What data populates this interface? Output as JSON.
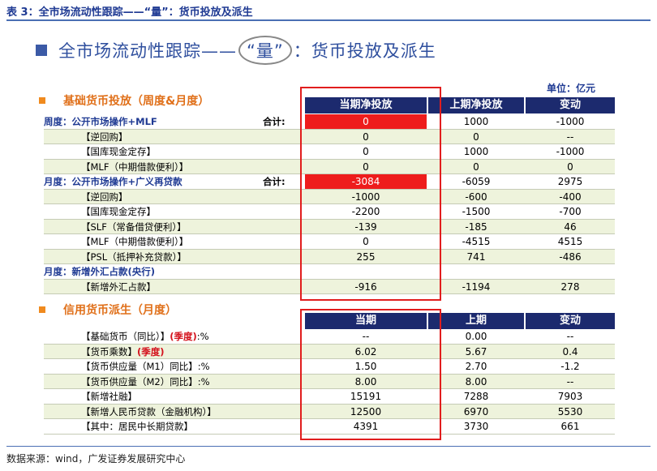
{
  "caption": "表 3：全市场流动性跟踪——“量”：货币投放及派生",
  "title": {
    "prefix": "全市场流动性跟踪——",
    "circled": "“量”",
    "suffix": "：货币投放及派生"
  },
  "unit": "单位：亿元",
  "section1": {
    "title": "基础货币投放（周度&月度）",
    "headers": [
      "当期净投放",
      "上期净投放",
      "变动"
    ],
    "rows": [
      {
        "label": "周度：公开市场操作+MLF",
        "type": "group",
        "total_label": "合计:",
        "cur": "0",
        "prev": "1000",
        "chg": "-1000",
        "highlight": true
      },
      {
        "label": "【逆回购】",
        "type": "sub",
        "cur": "0",
        "prev": "0",
        "chg": "--"
      },
      {
        "label": "【国库现金定存】",
        "type": "sub",
        "cur": "0",
        "prev": "1000",
        "chg": "-1000"
      },
      {
        "label": "【MLF（中期借款便利）】",
        "type": "sub",
        "cur": "0",
        "prev": "0",
        "chg": "0"
      },
      {
        "label": "月度：公开市场操作+广义再贷款",
        "type": "group",
        "total_label": "合计:",
        "cur": "-3084",
        "prev": "-6059",
        "chg": "2975",
        "highlight": true
      },
      {
        "label": "【逆回购】",
        "type": "sub",
        "cur": "-1000",
        "prev": "-600",
        "chg": "-400"
      },
      {
        "label": "【国库现金定存】",
        "type": "sub",
        "cur": "-2200",
        "prev": "-1500",
        "chg": "-700"
      },
      {
        "label": "【SLF（常备借贷便利）】",
        "type": "sub",
        "cur": "-139",
        "prev": "-185",
        "chg": "46"
      },
      {
        "label": "【MLF（中期借款便利）】",
        "type": "sub",
        "cur": "0",
        "prev": "-4515",
        "chg": "4515"
      },
      {
        "label": "【PSL（抵押补充贷款）】",
        "type": "sub",
        "cur": "255",
        "prev": "741",
        "chg": "-486"
      },
      {
        "label": "月度：新增外汇占款(央行)",
        "type": "group",
        "cur": "",
        "prev": "",
        "chg": ""
      },
      {
        "label": "【新增外汇占款】",
        "type": "sub",
        "cur": "-916",
        "prev": "-1194",
        "chg": "278"
      }
    ]
  },
  "section2": {
    "title": "信用货币派生（月度）",
    "headers": [
      "当期",
      "上期",
      "变动"
    ],
    "rows": [
      {
        "label": "【基础货币（同比）】",
        "red": "(季度)",
        "after": ":%",
        "cur": "--",
        "prev": "0.00",
        "chg": "--"
      },
      {
        "label": "【货币乘数】",
        "red": "(季度)",
        "after": "",
        "cur": "6.02",
        "prev": "5.67",
        "chg": "0.4"
      },
      {
        "label": "【货币供应量（M1）同比】",
        "red": "",
        "after": ":%",
        "cur": "1.50",
        "prev": "2.70",
        "chg": "-1.2"
      },
      {
        "label": "【货币供应量（M2）同比】",
        "red": "",
        "after": ":%",
        "cur": "8.00",
        "prev": "8.00",
        "chg": "--"
      },
      {
        "label": "【新增社融】",
        "red": "",
        "after": "",
        "cur": "15191",
        "prev": "7288",
        "chg": "7903"
      },
      {
        "label": "【新增人民币贷款（金融机构）】",
        "red": "",
        "after": "",
        "cur": "12500",
        "prev": "6970",
        "chg": "5530"
      },
      {
        "label": "【其中：居民中长期贷款】",
        "red": "",
        "after": "",
        "cur": "4391",
        "prev": "3730",
        "chg": "661"
      }
    ]
  },
  "source": "数据来源：wind，广发证券发展研究中心",
  "colors": {
    "header_bg": "#1c2a6e",
    "highlight": "#ee1c1c",
    "accent": "#e0701a",
    "title": "#2f4f9e"
  }
}
